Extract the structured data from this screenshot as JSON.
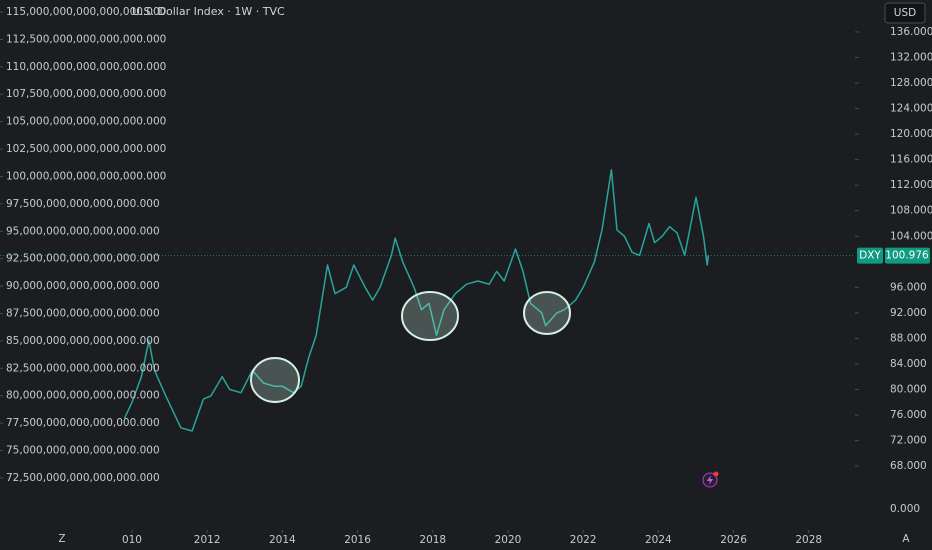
{
  "chart_data": {
    "type": "line",
    "title": "U.S. Dollar Index · 1W · TVC",
    "currency_button": "USD",
    "symbol_label": "DXY",
    "last_price": 100.976,
    "last_price_label": "100.976",
    "bottom_label": "0.000",
    "bottom_left_icon": "Z",
    "bottom_right_icon": "A",
    "xlim": [
      2006.49,
      2029.23
    ],
    "xticks": [
      {
        "value": 2010,
        "label": "010"
      },
      2012,
      2014,
      2016,
      2018,
      2020,
      2022,
      2024,
      2026,
      2028
    ],
    "ylim": [
      58,
      141
    ],
    "yticks": [
      {
        "value": 68,
        "label": "68.000"
      },
      {
        "value": 72,
        "label": "72.000"
      },
      {
        "value": 76,
        "label": "76.000"
      },
      {
        "value": 80,
        "label": "80.000"
      },
      {
        "value": 84,
        "label": "84.000"
      },
      {
        "value": 88,
        "label": "88.000"
      },
      {
        "value": 92,
        "label": "92.000"
      },
      {
        "value": 96,
        "label": "96.000"
      },
      {
        "value": 104,
        "label": "104.000"
      },
      {
        "value": 108,
        "label": "108.000"
      },
      {
        "value": 112,
        "label": "112.000"
      },
      {
        "value": 116,
        "label": "116.000"
      },
      {
        "value": 120,
        "label": "120.000"
      },
      {
        "value": 124,
        "label": "124.000"
      },
      {
        "value": 128,
        "label": "128.000"
      },
      {
        "value": 132,
        "label": "132.000"
      },
      {
        "value": 136,
        "label": "136.000"
      }
    ],
    "y2lim": [
      67750000000000000,
      116095000000000000
    ],
    "y2ticks": [
      {
        "value": 72500000000000000,
        "label": "72,500,000,000,000,000.000"
      },
      {
        "value": 75000000000000000,
        "label": "75,000,000,000,000,000.000"
      },
      {
        "value": 77500000000000000,
        "label": "77,500,000,000,000,000.000"
      },
      {
        "value": 80000000000000000,
        "label": "80,000,000,000,000,000.000"
      },
      {
        "value": 82500000000000000,
        "label": "82,500,000,000,000,000.000"
      },
      {
        "value": 85000000000000000,
        "label": "85,000,000,000,000,000.000"
      },
      {
        "value": 87500000000000000,
        "label": "87,500,000,000,000,000.000"
      },
      {
        "value": 90000000000000000,
        "label": "90,000,000,000,000,000.000"
      },
      {
        "value": 92500000000000000,
        "label": "92,500,000,000,000,000.000"
      },
      {
        "value": 95000000000000000,
        "label": "95,000,000,000,000,000.000"
      },
      {
        "value": 97500000000000000,
        "label": "97,500,000,000,000,000.000"
      },
      {
        "value": 100000000000000000,
        "label": "100,000,000,000,000,000.000"
      },
      {
        "value": 102500000000000000,
        "label": "102,500,000,000,000,000.000"
      },
      {
        "value": 105000000000000000,
        "label": "105,000,000,000,000,000.000"
      },
      {
        "value": 107500000000000000,
        "label": "107,500,000,000,000,000.000"
      },
      {
        "value": 110000000000000000,
        "label": "110,000,000,000,000,000.000"
      },
      {
        "value": 112500000000000000,
        "label": "112,500,000,000,000,000.000"
      },
      {
        "value": 115000000000000000,
        "label": "115,000,000,000,000,000.000"
      }
    ],
    "series": [
      {
        "name": "DXY",
        "color": "#26a69a",
        "x": [
          2009.8,
          2010.0,
          2010.25,
          2010.45,
          2010.6,
          2010.9,
          2011.3,
          2011.6,
          2011.9,
          2012.1,
          2012.4,
          2012.6,
          2012.9,
          2013.2,
          2013.5,
          2013.8,
          2014.0,
          2014.3,
          2014.5,
          2014.7,
          2014.9,
          2015.2,
          2015.4,
          2015.7,
          2015.9,
          2016.2,
          2016.4,
          2016.6,
          2016.9,
          2017.0,
          2017.2,
          2017.5,
          2017.7,
          2017.9,
          2018.1,
          2018.3,
          2018.6,
          2018.9,
          2019.2,
          2019.5,
          2019.7,
          2019.9,
          2020.2,
          2020.4,
          2020.6,
          2020.9,
          2021.0,
          2021.3,
          2021.5,
          2021.8,
          2022.0,
          2022.3,
          2022.5,
          2022.75,
          2022.9,
          2023.1,
          2023.3,
          2023.5,
          2023.75,
          2023.9,
          2024.1,
          2024.3,
          2024.5,
          2024.7,
          2024.9,
          2025.0,
          2025.2,
          2025.3,
          2025.33
        ],
        "values": [
          75.5,
          78,
          82,
          87.7,
          83,
          79,
          74,
          73.5,
          78.5,
          79,
          82,
          80,
          79.5,
          83,
          81,
          80.5,
          80.5,
          79.5,
          80.5,
          85,
          88.5,
          99.5,
          95,
          96,
          99.5,
          96,
          94,
          96,
          101,
          103.7,
          100,
          96,
          92.5,
          93.5,
          88.5,
          92.5,
          95,
          96.5,
          97,
          96.5,
          98.5,
          97,
          102,
          98.5,
          93.5,
          92,
          90,
          92,
          92.5,
          94,
          96,
          100,
          105,
          114.4,
          105,
          104,
          101.5,
          101,
          106,
          103,
          104,
          105.5,
          104.5,
          101,
          107,
          110.1,
          104,
          99.5,
          101
        ]
      }
    ]
  }
}
